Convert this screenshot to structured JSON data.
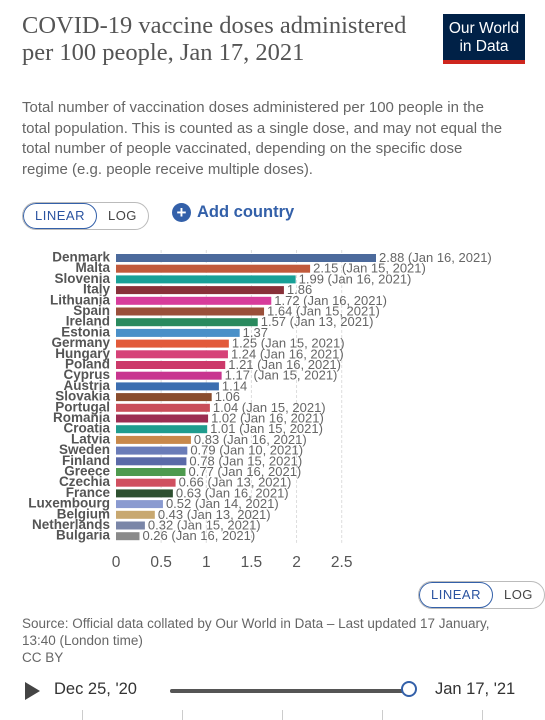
{
  "header": {
    "title": "COVID-19 vaccine doses administered per 100 people, Jan 17, 2021",
    "subtitle": "Total number of vaccination doses administered per 100 people in the total population. This is counted as a single dose, and may not equal the total number of people vaccinated, depending on the specific dose regime (e.g. people receive multiple doses).",
    "logo_line1": "Our World",
    "logo_line2": "in Data"
  },
  "controls": {
    "linear_label": "LINEAR",
    "log_label": "LOG",
    "add_country_label": "Add country"
  },
  "source_text": "Source: Official data collated by Our World in Data – Last updated 17 January, 13:40 (London time)",
  "license_text": "CC BY",
  "timeline": {
    "start_label": "Dec 25, '20",
    "end_label": "Jan 17, '21",
    "progress": 1.0
  },
  "colors": {
    "brand_navy": "#002147",
    "brand_red": "#ce261e",
    "accent_blue": "#3360a9"
  },
  "chart_data": {
    "type": "bar",
    "orientation": "horizontal",
    "xlim": [
      0,
      2.88
    ],
    "xticks": [
      "0",
      "0.5",
      "1",
      "1.5",
      "2",
      "2.5"
    ],
    "tick_values": [
      0,
      0.5,
      1,
      1.5,
      2,
      2.5
    ],
    "grid": true,
    "categories": [
      "Denmark",
      "Malta",
      "Slovenia",
      "Italy",
      "Lithuania",
      "Spain",
      "Ireland",
      "Estonia",
      "Germany",
      "Hungary",
      "Poland",
      "Cyprus",
      "Austria",
      "Slovakia",
      "Portugal",
      "Romania",
      "Croatia",
      "Latvia",
      "Sweden",
      "Finland",
      "Greece",
      "Czechia",
      "France",
      "Luxembourg",
      "Belgium",
      "Netherlands",
      "Bulgaria"
    ],
    "values": [
      2.88,
      2.15,
      1.99,
      1.86,
      1.72,
      1.64,
      1.57,
      1.37,
      1.25,
      1.24,
      1.21,
      1.17,
      1.14,
      1.06,
      1.04,
      1.02,
      1.01,
      0.83,
      0.79,
      0.78,
      0.77,
      0.66,
      0.63,
      0.52,
      0.43,
      0.32,
      0.26
    ],
    "value_labels": [
      "2.88 (Jan 16, 2021)",
      "2.15 (Jan 15, 2021)",
      "1.99 (Jan 16, 2021)",
      "1.86",
      "1.72 (Jan 16, 2021)",
      "1.64 (Jan 15, 2021)",
      "1.57 (Jan 13, 2021)",
      "1.37",
      "1.25 (Jan 15, 2021)",
      "1.24 (Jan 16, 2021)",
      "1.21 (Jan 16, 2021)",
      "1.17 (Jan 15, 2021)",
      "1.14",
      "1.06",
      "1.04 (Jan 15, 2021)",
      "1.02 (Jan 16, 2021)",
      "1.01 (Jan 15, 2021)",
      "0.83 (Jan 16, 2021)",
      "0.79 (Jan 10, 2021)",
      "0.78 (Jan 15, 2021)",
      "0.77 (Jan 16, 2021)",
      "0.66 (Jan 13, 2021)",
      "0.63 (Jan 16, 2021)",
      "0.52 (Jan 14, 2021)",
      "0.43 (Jan 13, 2021)",
      "0.32 (Jan 15, 2021)",
      "0.26 (Jan 16, 2021)"
    ],
    "bar_colors": [
      "#4c6a9c",
      "#c15a3c",
      "#18a097",
      "#883039",
      "#d73c9b",
      "#9a4f3a",
      "#2a8a5e",
      "#4a90c8",
      "#e25a3a",
      "#d64278",
      "#cc3a6a",
      "#c8358f",
      "#3c6eb0",
      "#8a4d2e",
      "#c94d5a",
      "#9c2d52",
      "#1f9c8e",
      "#c8884a",
      "#6a7cb8",
      "#5a6aa8",
      "#4e9a4e",
      "#d05060",
      "#2e5030",
      "#8a9ad0",
      "#c8a870",
      "#7a86a8",
      "#8a8a8a"
    ]
  }
}
